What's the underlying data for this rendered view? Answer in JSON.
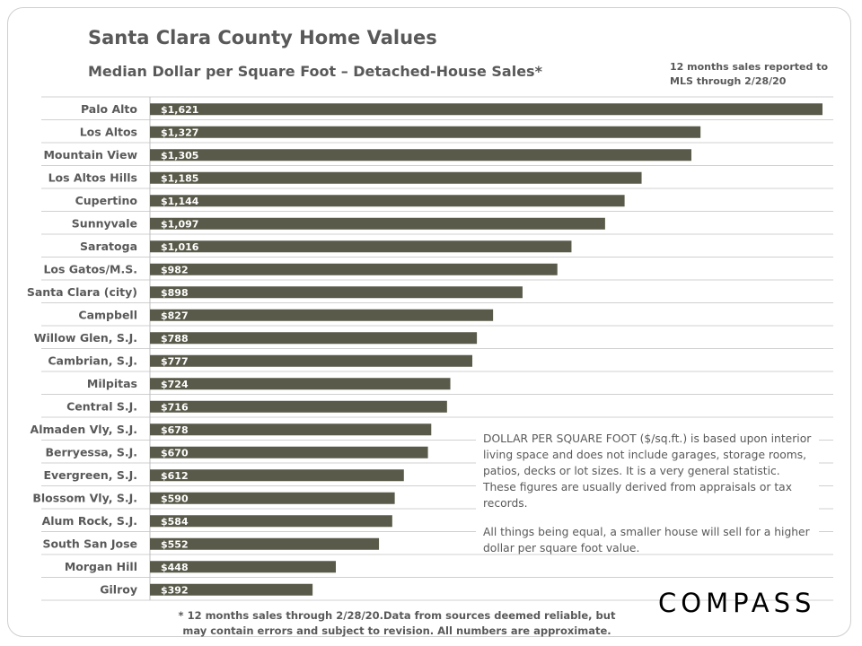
{
  "header": {
    "title": "Santa Clara County Home Values",
    "subtitle": "Median Dollar per Square Foot – Detached-House Sales*",
    "note_line1": "12 months sales reported to",
    "note_line2": "MLS through 2/28/20"
  },
  "chart_data": {
    "type": "bar",
    "orientation": "horizontal",
    "title": "Santa Clara County Home Values",
    "subtitle": "Median Dollar per Square Foot – Detached-House Sales*",
    "xlabel": "",
    "ylabel": "",
    "xlim": [
      0,
      1621
    ],
    "grid": "horizontal",
    "bar_color": "#595a49",
    "label_color": "#ffffff",
    "categories": [
      "Palo Alto",
      "Los Altos",
      "Mountain View",
      "Los Altos Hills",
      "Cupertino",
      "Sunnyvale",
      "Saratoga",
      "Los Gatos/M.S.",
      "Santa Clara (city)",
      "Campbell",
      "Willow Glen, S.J.",
      "Cambrian, S.J.",
      "Milpitas",
      "Central S.J.",
      "Almaden Vly, S.J.",
      "Berryessa, S.J.",
      "Evergreen, S.J.",
      "Blossom Vly, S.J.",
      "Alum Rock, S.J.",
      "South San Jose",
      "Morgan Hill",
      "Gilroy"
    ],
    "values": [
      1621,
      1327,
      1305,
      1185,
      1144,
      1097,
      1016,
      982,
      898,
      827,
      788,
      777,
      724,
      716,
      678,
      670,
      612,
      590,
      584,
      552,
      448,
      392
    ],
    "data_labels": [
      "$1,621",
      "$1,327",
      "$1,305",
      "$1,185",
      "$1,144",
      "$1,097",
      "$1,016",
      "$982",
      "$898",
      "$827",
      "$788",
      "$777",
      "$724",
      "$716",
      "$678",
      "$670",
      "$612",
      "$590",
      "$584",
      "$552",
      "$448",
      "$392"
    ]
  },
  "info": {
    "para1": "DOLLAR PER SQUARE FOOT ($/sq.ft.) is based upon interior living space and does not include garages, storage rooms, patios, decks or lot sizes. It is a very general statistic. These figures are usually derived from appraisals or tax records.",
    "para2": "All things being equal, a smaller house will sell for a higher dollar per square foot value."
  },
  "footnote": {
    "line1": "* 12 months sales through 2/28/20.Data from sources deemed reliable, but",
    "line2": "may contain errors and subject to revision. All numbers are approximate."
  },
  "brand": {
    "logo_text": "COMPASS"
  }
}
